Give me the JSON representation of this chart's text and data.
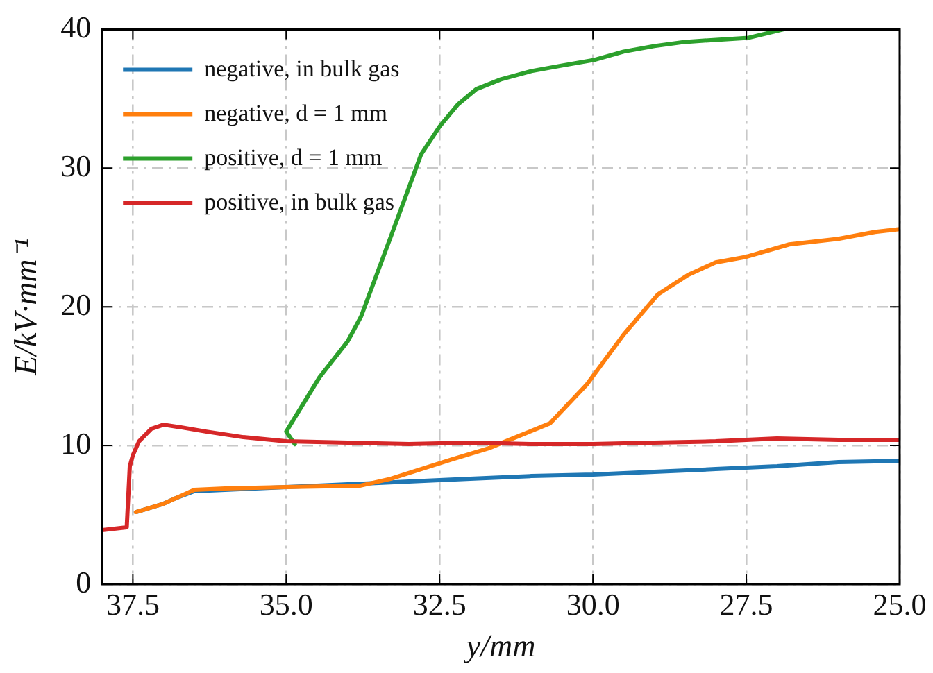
{
  "chart_data": {
    "type": "line",
    "xlabel": "y/mm",
    "ylabel": "E/kV·mm⁻¹",
    "xlim": [
      38.0,
      25.0
    ],
    "ylim": [
      0,
      40
    ],
    "xticks": [
      {
        "value": 37.5,
        "label": "37.5"
      },
      {
        "value": 35,
        "label": "35.0"
      },
      {
        "value": 32.5,
        "label": "32.5"
      },
      {
        "value": 30,
        "label": "30.0"
      },
      {
        "value": 27.5,
        "label": "27.5"
      },
      {
        "value": 25,
        "label": "25.0"
      }
    ],
    "yticks": [
      0,
      10,
      20,
      30,
      40
    ],
    "grid": true,
    "legend": "top left",
    "marker": "none",
    "line_style": "solid",
    "series": [
      {
        "name": "negative, in bulk gas",
        "color": "#1f77b4",
        "x": [
          37.45,
          37.0,
          36.8,
          36.5,
          36.0,
          35.0,
          34.0,
          33.0,
          32.0,
          31.0,
          30.0,
          29.0,
          28.0,
          27.0,
          26.0,
          25.0
        ],
        "values": [
          5.2,
          5.8,
          6.2,
          6.7,
          6.8,
          7.0,
          7.2,
          7.4,
          7.6,
          7.8,
          7.9,
          8.1,
          8.3,
          8.5,
          8.8,
          8.9
        ]
      },
      {
        "name": "negative, d = 1 mm",
        "color": "#ff7f0e",
        "x": [
          37.45,
          37.0,
          36.8,
          36.5,
          36.0,
          35.0,
          33.8,
          33.3,
          32.8,
          32.3,
          31.7,
          31.2,
          30.7,
          30.1,
          29.5,
          28.94,
          28.45,
          28.0,
          27.5,
          26.8,
          26.0,
          25.4,
          25.0
        ],
        "values": [
          5.2,
          5.8,
          6.2,
          6.8,
          6.9,
          7.0,
          7.1,
          7.6,
          8.3,
          9.0,
          9.8,
          10.7,
          11.6,
          14.4,
          18.0,
          20.9,
          22.3,
          23.2,
          23.6,
          24.5,
          24.9,
          25.4,
          25.6
        ]
      },
      {
        "name": "positive, d = 1 mm",
        "color": "#2ca02c",
        "x": [
          34.86,
          35.0,
          34.46,
          34.0,
          33.78,
          33.3,
          32.8,
          32.5,
          32.2,
          31.9,
          31.5,
          31.0,
          30.5,
          29.98,
          29.5,
          29.0,
          28.5,
          27.46,
          26.9
        ],
        "values": [
          10.1,
          11.0,
          14.9,
          17.5,
          19.3,
          25.0,
          31.0,
          33.0,
          34.6,
          35.7,
          36.4,
          37.0,
          37.4,
          37.8,
          38.4,
          38.8,
          39.1,
          39.4,
          40.0
        ]
      },
      {
        "name": "positive, in bulk gas",
        "color": "#d62728",
        "x": [
          38.0,
          37.6,
          37.55,
          37.5,
          37.4,
          37.2,
          37.0,
          36.7,
          36.3,
          35.7,
          35.0,
          34.0,
          33.0,
          32.0,
          31.0,
          30.0,
          29.0,
          28.0,
          27.0,
          26.0,
          25.0
        ],
        "values": [
          3.9,
          4.1,
          8.5,
          9.3,
          10.3,
          11.2,
          11.5,
          11.3,
          11.0,
          10.6,
          10.3,
          10.2,
          10.1,
          10.2,
          10.1,
          10.1,
          10.2,
          10.3,
          10.5,
          10.4,
          10.4
        ]
      }
    ]
  }
}
